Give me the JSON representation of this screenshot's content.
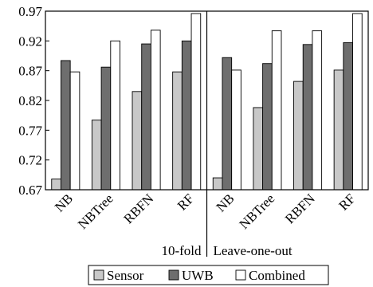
{
  "chart_data": {
    "type": "bar",
    "categories": [
      "NB",
      "NBTree",
      "RBFN",
      "RF",
      "NB",
      "NBTree",
      "RBFN",
      "RF"
    ],
    "groups": [
      {
        "label": "10-fold",
        "category_indices": [
          0,
          1,
          2,
          3
        ]
      },
      {
        "label": "Leave-one-out",
        "category_indices": [
          4,
          5,
          6,
          7
        ]
      }
    ],
    "series": [
      {
        "name": "Sensor",
        "color": "#c8c8c8",
        "values": [
          0.688,
          0.787,
          0.835,
          0.868,
          0.69,
          0.808,
          0.852,
          0.871
        ]
      },
      {
        "name": "UWB",
        "color": "#6e6e6e",
        "values": [
          0.887,
          0.876,
          0.915,
          0.92,
          0.892,
          0.882,
          0.914,
          0.917
        ]
      },
      {
        "name": "Combined",
        "color": "#ffffff",
        "values": [
          0.868,
          0.92,
          0.938,
          0.966,
          0.871,
          0.937,
          0.937,
          0.966
        ]
      }
    ],
    "ylim": [
      0.67,
      0.97
    ],
    "yticks": [
      "0.67",
      "0.72",
      "0.77",
      "0.82",
      "0.87",
      "0.92",
      "0.97"
    ],
    "title": "",
    "xlabel": "",
    "ylabel": "",
    "grid": false,
    "legend_position": "bottom"
  }
}
